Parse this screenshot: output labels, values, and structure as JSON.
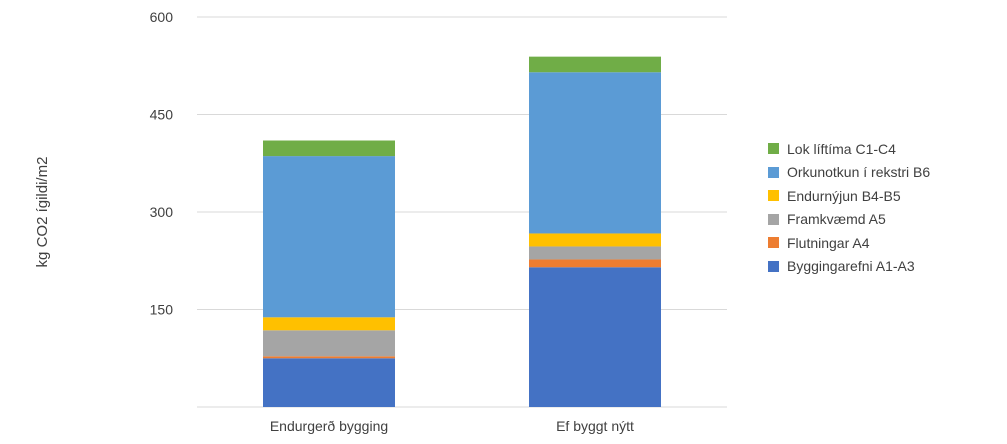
{
  "chart_data": {
    "type": "bar",
    "stacked": true,
    "ylabel": "kg CO2 ígildi/m2",
    "ylim": [
      0,
      600
    ],
    "yticks": [
      150,
      300,
      450,
      600
    ],
    "grid": true,
    "legend_position": "right",
    "categories": [
      "Endurgerð bygging",
      "Ef byggt nýtt"
    ],
    "series": [
      {
        "name": "Byggingarefni A1-A3",
        "color": "#4472C4",
        "values": [
          75,
          215
        ]
      },
      {
        "name": "Flutningar A4",
        "color": "#ED7D31",
        "values": [
          3,
          12
        ]
      },
      {
        "name": "Framkvæmd A5",
        "color": "#A5A5A5",
        "values": [
          40,
          20
        ]
      },
      {
        "name": "Endurnýjun B4-B5",
        "color": "#FFC000",
        "values": [
          20,
          20
        ]
      },
      {
        "name": "Orkunotkun í rekstri B6",
        "color": "#5B9BD5",
        "values": [
          248,
          248
        ]
      },
      {
        "name": "Lok líftíma C1-C4",
        "color": "#70AD47",
        "values": [
          24,
          24
        ]
      }
    ]
  }
}
